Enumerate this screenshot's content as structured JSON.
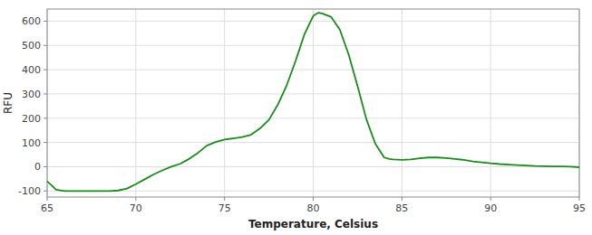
{
  "chart_data": {
    "type": "line",
    "xlabel": "Temperature, Celsius",
    "ylabel": "RFU",
    "x": [
      65.0,
      65.3,
      65.5,
      66.0,
      66.5,
      67.0,
      67.5,
      68.0,
      68.5,
      69.0,
      69.5,
      70.0,
      70.5,
      71.0,
      71.5,
      72.0,
      72.5,
      73.0,
      73.5,
      74.0,
      74.5,
      75.0,
      75.5,
      76.0,
      76.5,
      77.0,
      77.5,
      78.0,
      78.5,
      79.0,
      79.5,
      80.0,
      80.3,
      80.5,
      81.0,
      81.5,
      82.0,
      82.5,
      83.0,
      83.5,
      84.0,
      84.3,
      84.5,
      85.0,
      85.5,
      86.0,
      86.5,
      87.0,
      87.5,
      88.0,
      88.5,
      89.0,
      89.5,
      90.0,
      90.5,
      91.0,
      91.5,
      92.0,
      92.5,
      93.0,
      93.5,
      94.0,
      94.5,
      95.0
    ],
    "values": [
      -60,
      -80,
      -95,
      -100,
      -100,
      -100,
      -100,
      -100,
      -100,
      -98,
      -90,
      -72,
      -52,
      -32,
      -15,
      0,
      12,
      32,
      57,
      87,
      102,
      112,
      117,
      122,
      132,
      158,
      193,
      255,
      335,
      435,
      545,
      622,
      635,
      632,
      618,
      565,
      462,
      332,
      195,
      95,
      38,
      32,
      30,
      28,
      30,
      35,
      38,
      38,
      36,
      32,
      28,
      22,
      18,
      14,
      11,
      9,
      7,
      5,
      3,
      2,
      1,
      1,
      0,
      -2
    ],
    "color": "#1a8a1a",
    "xlim": [
      65,
      95
    ],
    "ylim": [
      -125,
      650
    ],
    "xticks": [
      65,
      70,
      75,
      80,
      85,
      90,
      95
    ],
    "yticks": [
      -100,
      0,
      100,
      200,
      300,
      400,
      500,
      600
    ],
    "grid": true
  }
}
